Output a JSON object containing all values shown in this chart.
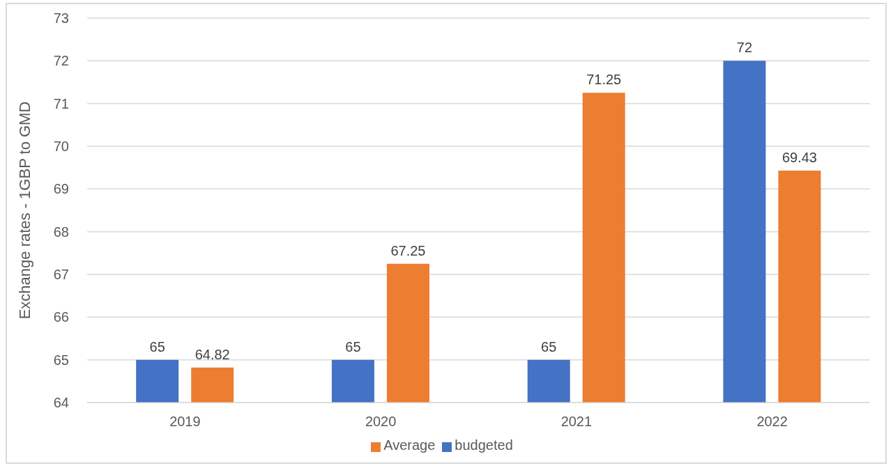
{
  "chart_data": {
    "type": "bar",
    "ylabel": "Exchange rates - 1GBP to GMD",
    "categories": [
      "2019",
      "2020",
      "2021",
      "2022"
    ],
    "series": [
      {
        "name": "budgeted",
        "color": "#4472c4",
        "values": [
          65,
          65,
          65,
          72
        ]
      },
      {
        "name": "Average",
        "color": "#ed7d31",
        "values": [
          64.82,
          67.25,
          71.25,
          69.43
        ]
      }
    ],
    "ylim": [
      64,
      73
    ],
    "yticks": [
      64,
      65,
      66,
      67,
      68,
      69,
      70,
      71,
      72,
      73
    ],
    "grid": "y",
    "legend": "bottom",
    "data_labels": true
  }
}
